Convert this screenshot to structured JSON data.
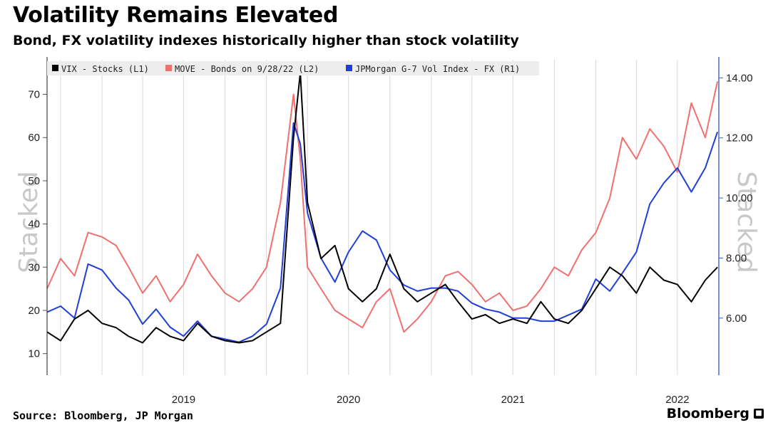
{
  "header": {
    "title": "Volatility Remains Elevated",
    "subtitle": "Bond, FX volatility indexes historically higher than stock volatility"
  },
  "footer": {
    "source": "Source: Bloomberg, JP Morgan",
    "brand": "Bloomberg",
    "brand_icon": "bloomberg-logo-icon"
  },
  "watermark": {
    "left": "Stacked",
    "right": "Stacked"
  },
  "colors": {
    "vix": "#000000",
    "move": "#f07070",
    "fx": "#1f3fd6",
    "right_axis": "#3a5fe0",
    "grid": "#d9d9d9"
  },
  "chart_data": {
    "type": "line",
    "x_axis": {
      "ticks": [
        "2019",
        "2020",
        "2021",
        "2022"
      ],
      "range": [
        "2018-09",
        "2022-10"
      ]
    },
    "y_left": {
      "ticks": [
        "10",
        "20",
        "30",
        "40",
        "50",
        "60",
        "70"
      ],
      "range": [
        5,
        78
      ]
    },
    "y_right": {
      "ticks": [
        "6.00",
        "8.00",
        "10.00",
        "12.00",
        "14.00"
      ],
      "range": [
        4.1,
        14.6
      ]
    },
    "legend_position": "top-left",
    "grid": true,
    "series": [
      {
        "name": "VIX - Stocks (L1)",
        "axis": "left",
        "x": [
          "2018-09-01",
          "2018-10-01",
          "2018-11-01",
          "2018-12-01",
          "2019-01-01",
          "2019-02-01",
          "2019-03-01",
          "2019-04-01",
          "2019-05-01",
          "2019-06-01",
          "2019-07-01",
          "2019-08-01",
          "2019-09-01",
          "2019-10-01",
          "2019-11-01",
          "2019-12-01",
          "2020-01-01",
          "2020-02-01",
          "2020-03-01",
          "2020-03-16",
          "2020-04-01",
          "2020-05-01",
          "2020-06-01",
          "2020-07-01",
          "2020-08-01",
          "2020-09-01",
          "2020-10-01",
          "2020-11-01",
          "2020-12-01",
          "2021-01-01",
          "2021-02-01",
          "2021-03-01",
          "2021-04-01",
          "2021-05-01",
          "2021-06-01",
          "2021-07-01",
          "2021-08-01",
          "2021-09-01",
          "2021-10-01",
          "2021-11-01",
          "2021-12-01",
          "2022-01-01",
          "2022-02-01",
          "2022-03-01",
          "2022-04-01",
          "2022-05-01",
          "2022-06-01",
          "2022-07-01",
          "2022-08-01",
          "2022-09-01",
          "2022-09-28"
        ],
        "values": [
          15,
          13,
          18,
          20,
          17,
          16,
          14,
          12.5,
          16,
          14,
          13,
          17,
          14,
          13,
          12.5,
          13,
          15,
          17,
          60,
          75,
          45,
          32,
          35,
          25,
          22,
          25,
          33,
          25,
          22,
          24,
          26,
          22,
          18,
          19,
          17,
          18,
          17,
          22,
          18,
          17,
          20,
          25,
          30,
          28,
          24,
          30,
          27,
          26,
          22,
          27,
          30
        ]
      },
      {
        "name": "MOVE - Bonds on 9/28/22 (L2)",
        "axis": "left",
        "x": [
          "2018-09-01",
          "2018-10-01",
          "2018-11-01",
          "2018-12-01",
          "2019-01-01",
          "2019-02-01",
          "2019-03-01",
          "2019-04-01",
          "2019-05-01",
          "2019-06-01",
          "2019-07-01",
          "2019-08-01",
          "2019-09-01",
          "2019-10-01",
          "2019-11-01",
          "2019-12-01",
          "2020-01-01",
          "2020-02-01",
          "2020-03-01",
          "2020-03-16",
          "2020-04-01",
          "2020-05-01",
          "2020-06-01",
          "2020-07-01",
          "2020-08-01",
          "2020-09-01",
          "2020-10-01",
          "2020-11-01",
          "2020-12-01",
          "2021-01-01",
          "2021-02-01",
          "2021-03-01",
          "2021-04-01",
          "2021-05-01",
          "2021-06-01",
          "2021-07-01",
          "2021-08-01",
          "2021-09-01",
          "2021-10-01",
          "2021-11-01",
          "2021-12-01",
          "2022-01-01",
          "2022-02-01",
          "2022-03-01",
          "2022-04-01",
          "2022-05-01",
          "2022-06-01",
          "2022-07-01",
          "2022-08-01",
          "2022-09-01",
          "2022-09-28"
        ],
        "values": [
          25,
          32,
          28,
          38,
          37,
          35,
          30,
          24,
          28,
          22,
          26,
          33,
          28,
          24,
          22,
          25,
          30,
          45,
          70,
          55,
          30,
          25,
          20,
          18,
          16,
          22,
          25,
          15,
          18,
          22,
          28,
          29,
          26,
          22,
          24,
          20,
          21,
          25,
          30,
          28,
          34,
          38,
          46,
          60,
          55,
          62,
          58,
          52,
          68,
          60,
          73
        ]
      },
      {
        "name": "JPMorgan G-7 Vol Index - FX (R1)",
        "axis": "right",
        "x": [
          "2018-09-01",
          "2018-10-01",
          "2018-11-01",
          "2018-12-01",
          "2019-01-01",
          "2019-02-01",
          "2019-03-01",
          "2019-04-01",
          "2019-05-01",
          "2019-06-01",
          "2019-07-01",
          "2019-08-01",
          "2019-09-01",
          "2019-10-01",
          "2019-11-01",
          "2019-12-01",
          "2020-01-01",
          "2020-02-01",
          "2020-03-01",
          "2020-03-16",
          "2020-04-01",
          "2020-05-01",
          "2020-06-01",
          "2020-07-01",
          "2020-08-01",
          "2020-09-01",
          "2020-10-01",
          "2020-11-01",
          "2020-12-01",
          "2021-01-01",
          "2021-02-01",
          "2021-03-01",
          "2021-04-01",
          "2021-05-01",
          "2021-06-01",
          "2021-07-01",
          "2021-08-01",
          "2021-09-01",
          "2021-10-01",
          "2021-11-01",
          "2021-12-01",
          "2022-01-01",
          "2022-02-01",
          "2022-03-01",
          "2022-04-01",
          "2022-05-01",
          "2022-06-01",
          "2022-07-01",
          "2022-08-01",
          "2022-09-01",
          "2022-09-28"
        ],
        "values": [
          6.2,
          6.4,
          6.0,
          7.8,
          7.6,
          7.0,
          6.6,
          5.8,
          6.3,
          5.7,
          5.4,
          5.9,
          5.4,
          5.3,
          5.2,
          5.4,
          5.8,
          7.0,
          12.5,
          11.8,
          9.5,
          8.0,
          7.2,
          8.2,
          8.9,
          8.6,
          7.6,
          7.1,
          6.9,
          7.0,
          7.0,
          6.9,
          6.5,
          6.3,
          6.2,
          6.0,
          6.0,
          5.9,
          5.9,
          6.1,
          6.3,
          7.3,
          6.9,
          7.5,
          8.2,
          9.8,
          10.5,
          11.0,
          10.2,
          11.0,
          12.2
        ]
      }
    ]
  }
}
